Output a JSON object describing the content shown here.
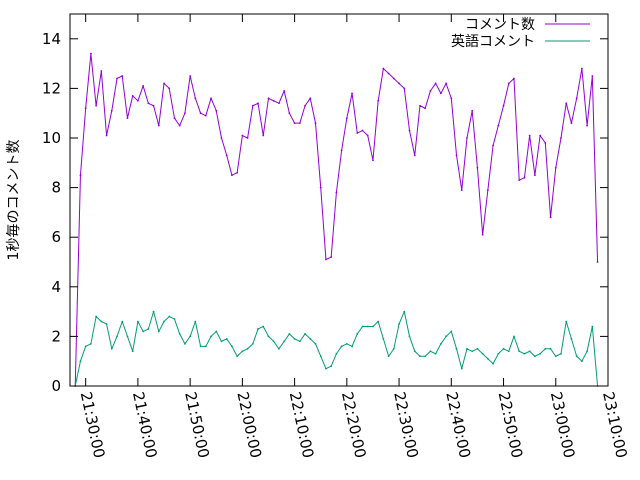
{
  "chart_data": {
    "type": "line",
    "ylabel": "1秒毎のコメント数",
    "xlabel": "",
    "ylim": [
      0,
      15
    ],
    "yticks": [
      0,
      2,
      4,
      6,
      8,
      10,
      12,
      14
    ],
    "xlim": [
      "21:27:00",
      "23:10:00"
    ],
    "xticks": [
      "21:30:00",
      "21:40:00",
      "21:50:00",
      "22:00:00",
      "22:10:00",
      "22:20:00",
      "22:30:00",
      "22:40:00",
      "22:50:00",
      "23:00:00",
      "23:10:00"
    ],
    "legend_position": "top-right",
    "grid": false,
    "series": [
      {
        "name": "コメント数",
        "color": "#9400d3",
        "points": [
          [
            "21:28:00",
            0.0
          ],
          [
            "21:29:00",
            8.5
          ],
          [
            "21:30:00",
            11.2
          ],
          [
            "21:31:00",
            13.4
          ],
          [
            "21:32:00",
            11.3
          ],
          [
            "21:33:00",
            12.7
          ],
          [
            "21:34:00",
            10.1
          ],
          [
            "21:35:00",
            11.1
          ],
          [
            "21:36:00",
            12.4
          ],
          [
            "21:37:00",
            12.5
          ],
          [
            "21:38:00",
            10.8
          ],
          [
            "21:39:00",
            11.7
          ],
          [
            "21:40:00",
            11.5
          ],
          [
            "21:41:00",
            12.1
          ],
          [
            "21:42:00",
            11.4
          ],
          [
            "21:43:00",
            11.3
          ],
          [
            "21:44:00",
            10.5
          ],
          [
            "21:45:00",
            12.2
          ],
          [
            "21:46:00",
            12.0
          ],
          [
            "21:47:00",
            10.8
          ],
          [
            "21:48:00",
            10.5
          ],
          [
            "21:49:00",
            11.0
          ],
          [
            "21:50:00",
            12.5
          ],
          [
            "21:51:00",
            11.6
          ],
          [
            "21:52:00",
            11.0
          ],
          [
            "21:53:00",
            10.9
          ],
          [
            "21:54:00",
            11.6
          ],
          [
            "21:55:00",
            11.1
          ],
          [
            "21:56:00",
            10.0
          ],
          [
            "21:57:00",
            9.3
          ],
          [
            "21:58:00",
            8.5
          ],
          [
            "21:59:00",
            8.6
          ],
          [
            "22:00:00",
            10.1
          ],
          [
            "22:01:00",
            10.0
          ],
          [
            "22:02:00",
            11.3
          ],
          [
            "22:03:00",
            11.4
          ],
          [
            "22:04:00",
            10.1
          ],
          [
            "22:05:00",
            11.6
          ],
          [
            "22:06:00",
            11.5
          ],
          [
            "22:07:00",
            11.4
          ],
          [
            "22:08:00",
            11.9
          ],
          [
            "22:09:00",
            11.0
          ],
          [
            "22:10:00",
            10.6
          ],
          [
            "22:11:00",
            10.6
          ],
          [
            "22:12:00",
            11.3
          ],
          [
            "22:13:00",
            11.6
          ],
          [
            "22:14:00",
            10.6
          ],
          [
            "22:15:00",
            8.0
          ],
          [
            "22:16:00",
            5.1
          ],
          [
            "22:17:00",
            5.2
          ],
          [
            "22:18:00",
            7.8
          ],
          [
            "22:19:00",
            9.5
          ],
          [
            "22:20:00",
            10.8
          ],
          [
            "22:21:00",
            11.8
          ],
          [
            "22:22:00",
            10.2
          ],
          [
            "22:23:00",
            10.3
          ],
          [
            "22:24:00",
            10.1
          ],
          [
            "22:25:00",
            9.1
          ],
          [
            "22:26:00",
            11.5
          ],
          [
            "22:27:00",
            12.8
          ],
          [
            "22:28:00",
            12.6
          ],
          [
            "22:29:00",
            12.4
          ],
          [
            "22:30:00",
            12.2
          ],
          [
            "22:31:00",
            12.0
          ],
          [
            "22:32:00",
            10.3
          ],
          [
            "22:33:00",
            9.3
          ],
          [
            "22:34:00",
            11.3
          ],
          [
            "22:35:00",
            11.2
          ],
          [
            "22:36:00",
            11.9
          ],
          [
            "22:37:00",
            12.2
          ],
          [
            "22:38:00",
            11.8
          ],
          [
            "22:39:00",
            12.2
          ],
          [
            "22:40:00",
            11.6
          ],
          [
            "22:41:00",
            9.3
          ],
          [
            "22:42:00",
            7.9
          ],
          [
            "22:43:00",
            10.0
          ],
          [
            "22:44:00",
            11.1
          ],
          [
            "22:45:00",
            8.8
          ],
          [
            "22:46:00",
            6.1
          ],
          [
            "22:47:00",
            7.9
          ],
          [
            "22:48:00",
            9.7
          ],
          [
            "22:49:00",
            10.5
          ],
          [
            "22:50:00",
            11.3
          ],
          [
            "22:51:00",
            12.2
          ],
          [
            "22:52:00",
            12.4
          ],
          [
            "22:53:00",
            8.3
          ],
          [
            "22:54:00",
            8.4
          ],
          [
            "22:55:00",
            10.1
          ],
          [
            "22:56:00",
            8.5
          ],
          [
            "22:57:00",
            10.1
          ],
          [
            "22:58:00",
            9.8
          ],
          [
            "22:59:00",
            6.8
          ],
          [
            "23:00:00",
            8.8
          ],
          [
            "23:01:00",
            10.0
          ],
          [
            "23:02:00",
            11.4
          ],
          [
            "23:03:00",
            10.6
          ],
          [
            "23:04:00",
            11.6
          ],
          [
            "23:05:00",
            12.8
          ],
          [
            "23:06:00",
            10.5
          ],
          [
            "23:07:00",
            12.5
          ],
          [
            "23:08:00",
            5.0
          ]
        ]
      },
      {
        "name": "英語コメント",
        "color": "#009e73",
        "points": [
          [
            "21:28:00",
            0.0
          ],
          [
            "21:29:00",
            1.0
          ],
          [
            "21:30:00",
            1.6
          ],
          [
            "21:31:00",
            1.7
          ],
          [
            "21:32:00",
            2.8
          ],
          [
            "21:33:00",
            2.6
          ],
          [
            "21:34:00",
            2.5
          ],
          [
            "21:35:00",
            1.5
          ],
          [
            "21:36:00",
            2.0
          ],
          [
            "21:37:00",
            2.6
          ],
          [
            "21:38:00",
            2.0
          ],
          [
            "21:39:00",
            1.4
          ],
          [
            "21:40:00",
            2.6
          ],
          [
            "21:41:00",
            2.2
          ],
          [
            "21:42:00",
            2.3
          ],
          [
            "21:43:00",
            3.0
          ],
          [
            "21:44:00",
            2.2
          ],
          [
            "21:45:00",
            2.6
          ],
          [
            "21:46:00",
            2.8
          ],
          [
            "21:47:00",
            2.7
          ],
          [
            "21:48:00",
            2.1
          ],
          [
            "21:49:00",
            1.7
          ],
          [
            "21:50:00",
            2.0
          ],
          [
            "21:51:00",
            2.6
          ],
          [
            "21:52:00",
            1.6
          ],
          [
            "21:53:00",
            1.6
          ],
          [
            "21:54:00",
            2.0
          ],
          [
            "21:55:00",
            2.2
          ],
          [
            "21:56:00",
            1.8
          ],
          [
            "21:57:00",
            1.9
          ],
          [
            "21:58:00",
            1.6
          ],
          [
            "21:59:00",
            1.2
          ],
          [
            "22:00:00",
            1.4
          ],
          [
            "22:01:00",
            1.5
          ],
          [
            "22:02:00",
            1.7
          ],
          [
            "22:03:00",
            2.3
          ],
          [
            "22:04:00",
            2.4
          ],
          [
            "22:05:00",
            2.0
          ],
          [
            "22:06:00",
            1.8
          ],
          [
            "22:07:00",
            1.5
          ],
          [
            "22:08:00",
            1.8
          ],
          [
            "22:09:00",
            2.1
          ],
          [
            "22:10:00",
            1.9
          ],
          [
            "22:11:00",
            1.8
          ],
          [
            "22:12:00",
            2.1
          ],
          [
            "22:13:00",
            1.9
          ],
          [
            "22:14:00",
            1.7
          ],
          [
            "22:15:00",
            1.2
          ],
          [
            "22:16:00",
            0.7
          ],
          [
            "22:17:00",
            0.8
          ],
          [
            "22:18:00",
            1.3
          ],
          [
            "22:19:00",
            1.6
          ],
          [
            "22:20:00",
            1.7
          ],
          [
            "22:21:00",
            1.6
          ],
          [
            "22:22:00",
            2.1
          ],
          [
            "22:23:00",
            2.4
          ],
          [
            "22:24:00",
            2.4
          ],
          [
            "22:25:00",
            2.4
          ],
          [
            "22:26:00",
            2.6
          ],
          [
            "22:27:00",
            1.9
          ],
          [
            "22:28:00",
            1.2
          ],
          [
            "22:29:00",
            1.5
          ],
          [
            "22:30:00",
            2.5
          ],
          [
            "22:31:00",
            3.0
          ],
          [
            "22:32:00",
            2.0
          ],
          [
            "22:33:00",
            1.4
          ],
          [
            "22:34:00",
            1.2
          ],
          [
            "22:35:00",
            1.2
          ],
          [
            "22:36:00",
            1.4
          ],
          [
            "22:37:00",
            1.3
          ],
          [
            "22:38:00",
            1.7
          ],
          [
            "22:39:00",
            2.0
          ],
          [
            "22:40:00",
            2.2
          ],
          [
            "22:41:00",
            1.5
          ],
          [
            "22:42:00",
            0.7
          ],
          [
            "22:43:00",
            1.5
          ],
          [
            "22:44:00",
            1.4
          ],
          [
            "22:45:00",
            1.5
          ],
          [
            "22:46:00",
            1.3
          ],
          [
            "22:47:00",
            1.1
          ],
          [
            "22:48:00",
            0.9
          ],
          [
            "22:49:00",
            1.3
          ],
          [
            "22:50:00",
            1.5
          ],
          [
            "22:51:00",
            1.4
          ],
          [
            "22:52:00",
            2.0
          ],
          [
            "22:53:00",
            1.4
          ],
          [
            "22:54:00",
            1.3
          ],
          [
            "22:55:00",
            1.4
          ],
          [
            "22:56:00",
            1.2
          ],
          [
            "22:57:00",
            1.3
          ],
          [
            "22:58:00",
            1.5
          ],
          [
            "22:59:00",
            1.5
          ],
          [
            "23:00:00",
            1.2
          ],
          [
            "23:01:00",
            1.3
          ],
          [
            "23:02:00",
            2.6
          ],
          [
            "23:03:00",
            1.9
          ],
          [
            "23:04:00",
            1.2
          ],
          [
            "23:05:00",
            1.0
          ],
          [
            "23:06:00",
            1.4
          ],
          [
            "23:07:00",
            2.4
          ],
          [
            "23:08:00",
            0.0
          ]
        ]
      }
    ]
  }
}
